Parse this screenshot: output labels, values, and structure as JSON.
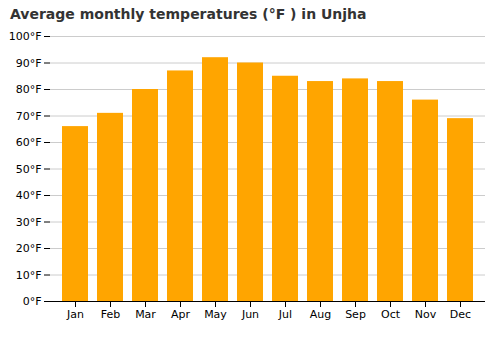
{
  "chart_data": {
    "type": "bar",
    "title": "Average monthly temperatures (°F ) in Unjha",
    "categories": [
      "Jan",
      "Feb",
      "Mar",
      "Apr",
      "May",
      "Jun",
      "Jul",
      "Aug",
      "Sep",
      "Oct",
      "Nov",
      "Dec"
    ],
    "values": [
      66,
      71,
      80,
      87,
      92,
      90,
      85,
      83,
      84,
      83,
      76,
      69
    ],
    "color": "#FFA500",
    "ylim": [
      0,
      100
    ],
    "yticks": [
      {
        "value": 0,
        "label": "0°F"
      },
      {
        "value": 10,
        "label": "10°F"
      },
      {
        "value": 20,
        "label": "20°F"
      },
      {
        "value": 30,
        "label": "30°F"
      },
      {
        "value": 40,
        "label": "40°F"
      },
      {
        "value": 50,
        "label": "50°F"
      },
      {
        "value": 60,
        "label": "60°F"
      },
      {
        "value": 70,
        "label": "70°F"
      },
      {
        "value": 80,
        "label": "80°F"
      },
      {
        "value": 90,
        "label": "90°F"
      },
      {
        "value": 100,
        "label": "100°F"
      }
    ],
    "grid": true
  }
}
